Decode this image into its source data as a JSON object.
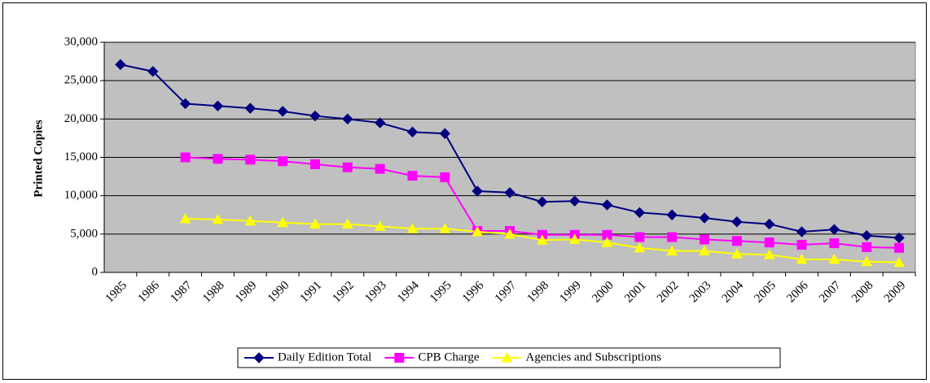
{
  "chart_data": {
    "type": "line",
    "ylabel": "Printed Copies",
    "categories": [
      "1985",
      "1986",
      "1987",
      "1988",
      "1989",
      "1990",
      "1991",
      "1992",
      "1993",
      "1994",
      "1995",
      "1996",
      "1997",
      "1998",
      "1999",
      "2000",
      "2001",
      "2002",
      "2003",
      "2004",
      "2005",
      "2006",
      "2007",
      "2008",
      "2009"
    ],
    "series": [
      {
        "name": "Daily Edition Total",
        "color": "#000080",
        "marker": "diamond",
        "values": [
          27100,
          26200,
          22000,
          21700,
          21400,
          21000,
          20400,
          20000,
          19500,
          18300,
          18100,
          10600,
          10400,
          9200,
          9300,
          8800,
          7800,
          7500,
          7100,
          6600,
          6300,
          5300,
          5600,
          4800,
          4500
        ]
      },
      {
        "name": "CPB Charge",
        "color": "#ff00ff",
        "marker": "square",
        "values": [
          null,
          null,
          15000,
          14800,
          14700,
          14500,
          14100,
          13700,
          13500,
          12600,
          12400,
          5400,
          5400,
          4900,
          4900,
          4900,
          4600,
          4600,
          4300,
          4100,
          3900,
          3600,
          3800,
          3300,
          3200
        ]
      },
      {
        "name": "Agencies and Subscriptions",
        "color": "#ffff00",
        "marker": "triangle",
        "values": [
          null,
          null,
          7000,
          6900,
          6700,
          6500,
          6300,
          6300,
          6000,
          5700,
          5700,
          5300,
          5000,
          4200,
          4300,
          3900,
          3200,
          2800,
          2800,
          2400,
          2300,
          1700,
          1700,
          1400,
          1300
        ]
      }
    ],
    "ylim": [
      0,
      30000
    ],
    "yticks": [
      0,
      {
        "value": 5000,
        "label": "5,000"
      },
      {
        "value": 10000,
        "label": "10,000"
      },
      {
        "value": 15000,
        "label": "15,000"
      },
      {
        "value": 20000,
        "label": "20,000"
      },
      {
        "value": 25000,
        "label": "25,000"
      },
      {
        "value": 30000,
        "label": "30,000"
      }
    ],
    "grid": true,
    "legend": "bottom",
    "plot_background": "#c0c0c0"
  }
}
